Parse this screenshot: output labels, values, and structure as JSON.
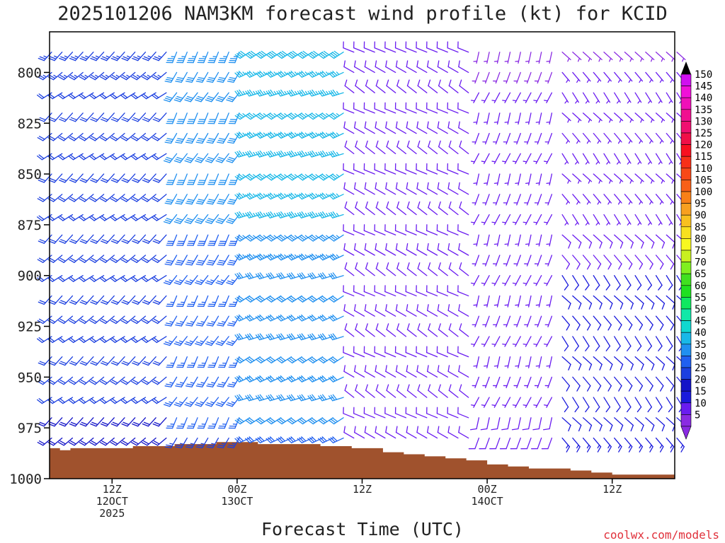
{
  "chart_data": {
    "type": "wind_barb_profile",
    "title": "2025101206 NAM3KM forecast wind profile (kt) for KCID",
    "xlabel": "Forecast Time (UTC)",
    "ylabel": "",
    "units": "kt",
    "credit": "coolwx.com/models",
    "y_axis": {
      "label_values": [
        800,
        825,
        850,
        875,
        900,
        925,
        950,
        975,
        1000
      ],
      "range": [
        780,
        1000
      ],
      "inverted": true
    },
    "x_axis": {
      "forecast_hours": [
        0,
        60
      ],
      "ticks": [
        {
          "hour": 6,
          "lines": [
            "12Z",
            "12OCT",
            "2025"
          ]
        },
        {
          "hour": 18,
          "lines": [
            "00Z",
            "13OCT"
          ]
        },
        {
          "hour": 30,
          "lines": [
            "12Z"
          ]
        },
        {
          "hour": 42,
          "lines": [
            "00Z",
            "14OCT"
          ]
        },
        {
          "hour": 54,
          "lines": [
            "12Z"
          ]
        }
      ]
    },
    "colorbar": {
      "levels": [
        5,
        10,
        15,
        20,
        25,
        30,
        35,
        40,
        45,
        50,
        55,
        60,
        65,
        70,
        75,
        80,
        85,
        90,
        95,
        100,
        105,
        110,
        115,
        120,
        125,
        130,
        135,
        140,
        145,
        150
      ],
      "colors": [
        "#8a2be2",
        "#6a1cf0",
        "#1a1adc",
        "#1414c8",
        "#1c40e0",
        "#2060f0",
        "#2090f0",
        "#18b8e8",
        "#10d8d0",
        "#10e8a8",
        "#10e860",
        "#20e020",
        "#40e020",
        "#80f020",
        "#c8f020",
        "#f8f820",
        "#f8e020",
        "#f8c020",
        "#f8a020",
        "#f88018",
        "#f86018",
        "#f84818",
        "#f83018",
        "#f81020",
        "#f01048",
        "#f01070",
        "#f01090",
        "#f010b8",
        "#f010d8",
        "#d010f0"
      ]
    },
    "terrain": {
      "color": "#a0522d",
      "series": [
        {
          "hour": 0,
          "pressure": 985
        },
        {
          "hour": 1,
          "pressure": 986
        },
        {
          "hour": 2,
          "pressure": 985
        },
        {
          "hour": 5,
          "pressure": 985
        },
        {
          "hour": 8,
          "pressure": 984
        },
        {
          "hour": 12,
          "pressure": 983
        },
        {
          "hour": 16,
          "pressure": 982
        },
        {
          "hour": 20,
          "pressure": 983
        },
        {
          "hour": 26,
          "pressure": 984
        },
        {
          "hour": 29,
          "pressure": 985
        },
        {
          "hour": 32,
          "pressure": 987
        },
        {
          "hour": 34,
          "pressure": 988
        },
        {
          "hour": 36,
          "pressure": 989
        },
        {
          "hour": 38,
          "pressure": 990
        },
        {
          "hour": 40,
          "pressure": 991
        },
        {
          "hour": 42,
          "pressure": 993
        },
        {
          "hour": 44,
          "pressure": 994
        },
        {
          "hour": 46,
          "pressure": 995
        },
        {
          "hour": 50,
          "pressure": 996
        },
        {
          "hour": 52,
          "pressure": 997
        },
        {
          "hour": 54,
          "pressure": 998
        },
        {
          "hour": 58,
          "pressure": 998
        },
        {
          "hour": 60,
          "pressure": 997
        }
      ]
    },
    "profile_levels": [
      790,
      800,
      810,
      820,
      830,
      840,
      850,
      860,
      870,
      880,
      890,
      900,
      910,
      920,
      930,
      940,
      950,
      960,
      970,
      980
    ],
    "wind_regimes": [
      {
        "hours": [
          0,
          11
        ],
        "direction_deg": 230,
        "speed_top_kt": 25,
        "speed_bottom_kt": 20
      },
      {
        "hours": [
          12,
          18
        ],
        "direction_deg": 210,
        "speed_top_kt": 35,
        "speed_bottom_kt": 25
      },
      {
        "hours": [
          19,
          28
        ],
        "direction_deg": 245,
        "speed_top_kt": 40,
        "speed_bottom_kt": 30
      },
      {
        "hours": [
          29,
          40
        ],
        "direction_deg": 300,
        "speed_top_kt": 10,
        "speed_bottom_kt": 10
      },
      {
        "hours": [
          41,
          48
        ],
        "direction_deg": 200,
        "speed_top_kt": 5,
        "speed_bottom_kt": 10
      },
      {
        "hours": [
          49,
          60
        ],
        "direction_deg": 140,
        "speed_top_kt": 5,
        "speed_bottom_kt": 15
      }
    ]
  }
}
